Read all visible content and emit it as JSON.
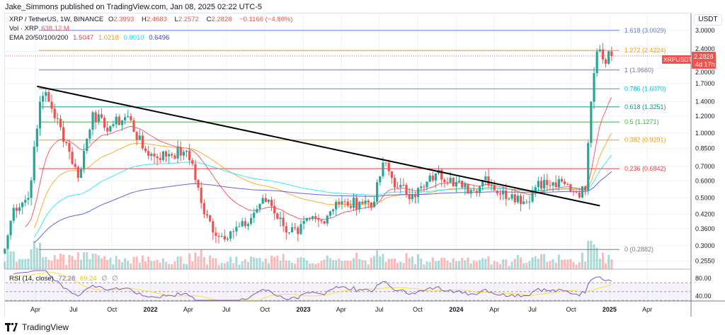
{
  "header": {
    "published": "Jake_Simmons published on TradingView.com, Jan 08, 2025 02:22 UTC-5"
  },
  "legend": {
    "symbol": "XRP / TetherUS, 1W, BINANCE",
    "o_label": "O",
    "o": "2.3993",
    "h_label": "H",
    "h": "2.4683",
    "l_label": "L",
    "l": "2.2572",
    "c_label": "C",
    "c": "2.2828",
    "change": "−0.1166 (−4.86%)",
    "vol_label": "Vol · XRP",
    "vol": "638.12 M",
    "ema_label": "EMA 20/50/100/200",
    "ema20": "1.5047",
    "ema50": "1.0218",
    "ema100": "0.8010",
    "ema200": "0.6496",
    "rsi_label": "RSI (14, close)",
    "rsi": "72.28",
    "rsi_ma": "69.24",
    "rsi_na1": "∅",
    "rsi_na2": "∅"
  },
  "price_axis": {
    "currency": "USDT",
    "ticks": [
      "3.0000",
      "2.4000",
      "2.0000",
      "1.7000",
      "1.4000",
      "1.2000",
      "1.0000",
      "0.8500",
      "0.7000",
      "0.6000",
      "0.5000",
      "0.4200",
      "0.3600",
      "0.3000",
      "0.2550"
    ],
    "last_label": "XRPUSDT",
    "last_price": "2.2828",
    "countdown": "4d 17h"
  },
  "rsi_axis": {
    "ticks": [
      "80.00",
      "40.00"
    ]
  },
  "time_axis": {
    "ticks": [
      [
        "2021-04-01",
        "Apr"
      ],
      [
        "2021-07-01",
        "Jul"
      ],
      [
        "2021-10-01",
        "Oct"
      ],
      [
        "2022-01-01",
        "2022"
      ],
      [
        "2022-04-01",
        "Apr"
      ],
      [
        "2022-07-01",
        "Jul"
      ],
      [
        "2022-10-01",
        "Oct"
      ],
      [
        "2023-01-01",
        "2023"
      ],
      [
        "2023-04-01",
        "Apr"
      ],
      [
        "2023-07-01",
        "Jul"
      ],
      [
        "2023-10-01",
        "Oct"
      ],
      [
        "2024-01-01",
        "2024"
      ],
      [
        "2024-04-01",
        "Apr"
      ],
      [
        "2024-07-01",
        "Jul"
      ],
      [
        "2024-10-01",
        "Oct"
      ],
      [
        "2025-01-01",
        "2025"
      ],
      [
        "2025-04-01",
        "Apr"
      ]
    ]
  },
  "colors": {
    "up": "#26a69a",
    "down": "#ef5350",
    "ema20": "#f23645",
    "ema50": "#ff9800",
    "ema100": "#00e5ff",
    "ema200": "#3f3fd8",
    "rsi": "#7e57c2",
    "rsi_ma": "#f5e33b",
    "trendline": "#000000"
  },
  "chart_data": {
    "type": "candlestick",
    "scale": "log",
    "approx_weekly_closes": [
      [
        "2021-01-18",
        0.29
      ],
      [
        "2021-02-08",
        0.45
      ],
      [
        "2021-03-15",
        0.5
      ],
      [
        "2021-04-05",
        1.05
      ],
      [
        "2021-04-12",
        1.4
      ],
      [
        "2021-04-26",
        1.55
      ],
      [
        "2021-05-10",
        1.3
      ],
      [
        "2021-06-14",
        0.9
      ],
      [
        "2021-07-12",
        0.62
      ],
      [
        "2021-08-16",
        1.25
      ],
      [
        "2021-09-13",
        1.06
      ],
      [
        "2021-10-04",
        1.1
      ],
      [
        "2021-11-08",
        1.2
      ],
      [
        "2021-12-13",
        0.85
      ],
      [
        "2022-01-10",
        0.78
      ],
      [
        "2022-02-14",
        0.8
      ],
      [
        "2022-03-21",
        0.82
      ],
      [
        "2022-04-11",
        0.72
      ],
      [
        "2022-05-09",
        0.42
      ],
      [
        "2022-06-13",
        0.33
      ],
      [
        "2022-07-11",
        0.35
      ],
      [
        "2022-08-15",
        0.37
      ],
      [
        "2022-09-19",
        0.47
      ],
      [
        "2022-10-10",
        0.49
      ],
      [
        "2022-11-14",
        0.37
      ],
      [
        "2022-12-19",
        0.34
      ],
      [
        "2023-01-16",
        0.4
      ],
      [
        "2023-02-13",
        0.39
      ],
      [
        "2023-03-20",
        0.48
      ],
      [
        "2023-04-17",
        0.46
      ],
      [
        "2023-05-15",
        0.48
      ],
      [
        "2023-06-19",
        0.48
      ],
      [
        "2023-07-10",
        0.73
      ],
      [
        "2023-08-14",
        0.56
      ],
      [
        "2023-09-18",
        0.52
      ],
      [
        "2023-10-16",
        0.56
      ],
      [
        "2023-11-13",
        0.65
      ],
      [
        "2023-12-18",
        0.62
      ],
      [
        "2024-01-15",
        0.56
      ],
      [
        "2024-02-12",
        0.54
      ],
      [
        "2024-03-11",
        0.63
      ],
      [
        "2024-04-15",
        0.52
      ],
      [
        "2024-05-13",
        0.52
      ],
      [
        "2024-06-17",
        0.48
      ],
      [
        "2024-07-15",
        0.6
      ],
      [
        "2024-08-12",
        0.57
      ],
      [
        "2024-09-16",
        0.58
      ],
      [
        "2024-10-14",
        0.53
      ],
      [
        "2024-11-04",
        0.54
      ],
      [
        "2024-11-11",
        0.9
      ],
      [
        "2024-11-18",
        1.4
      ],
      [
        "2024-11-25",
        1.9
      ],
      [
        "2024-12-02",
        2.4
      ],
      [
        "2024-12-09",
        2.45
      ],
      [
        "2024-12-16",
        2.2
      ],
      [
        "2024-12-23",
        2.1
      ],
      [
        "2024-12-30",
        2.4
      ],
      [
        "2025-01-06",
        2.2828
      ]
    ],
    "fib_levels": [
      {
        "ratio": "1.618",
        "price": 3.0029,
        "label": "1.618 (3.0029)",
        "color": "#5b7cf0"
      },
      {
        "ratio": "1.272",
        "price": 2.4224,
        "label": "1.272 (2.4224)",
        "color": "#ff9800"
      },
      {
        "ratio": "1",
        "price": 1.966,
        "label": "1 (1.9660)",
        "color": "#787b86"
      },
      {
        "ratio": "0.786",
        "price": 1.607,
        "label": "0.786 (1.6070)",
        "color": "#00bcd4"
      },
      {
        "ratio": "0.618",
        "price": 1.3251,
        "label": "0.618 (1.3251)",
        "color": "#089981"
      },
      {
        "ratio": "0.5",
        "price": 1.1271,
        "label": "0.5 (1.1271)",
        "color": "#4caf50"
      },
      {
        "ratio": "0.382",
        "price": 0.9291,
        "label": "0.382 (0.9291)",
        "color": "#ff9800"
      },
      {
        "ratio": "0.236",
        "price": 0.6842,
        "label": "0.236 (0.6842)",
        "color": "#f23645"
      },
      {
        "ratio": "0",
        "price": 0.2882,
        "label": "0 (0.2882)",
        "color": "#787b86"
      }
    ],
    "trendline": [
      [
        "2021-04-05",
        1.65
      ],
      [
        "2024-12-09",
        0.46
      ]
    ],
    "rsi_bands": [
      70,
      50,
      30
    ]
  },
  "footer": {
    "brand": "TradingView"
  }
}
